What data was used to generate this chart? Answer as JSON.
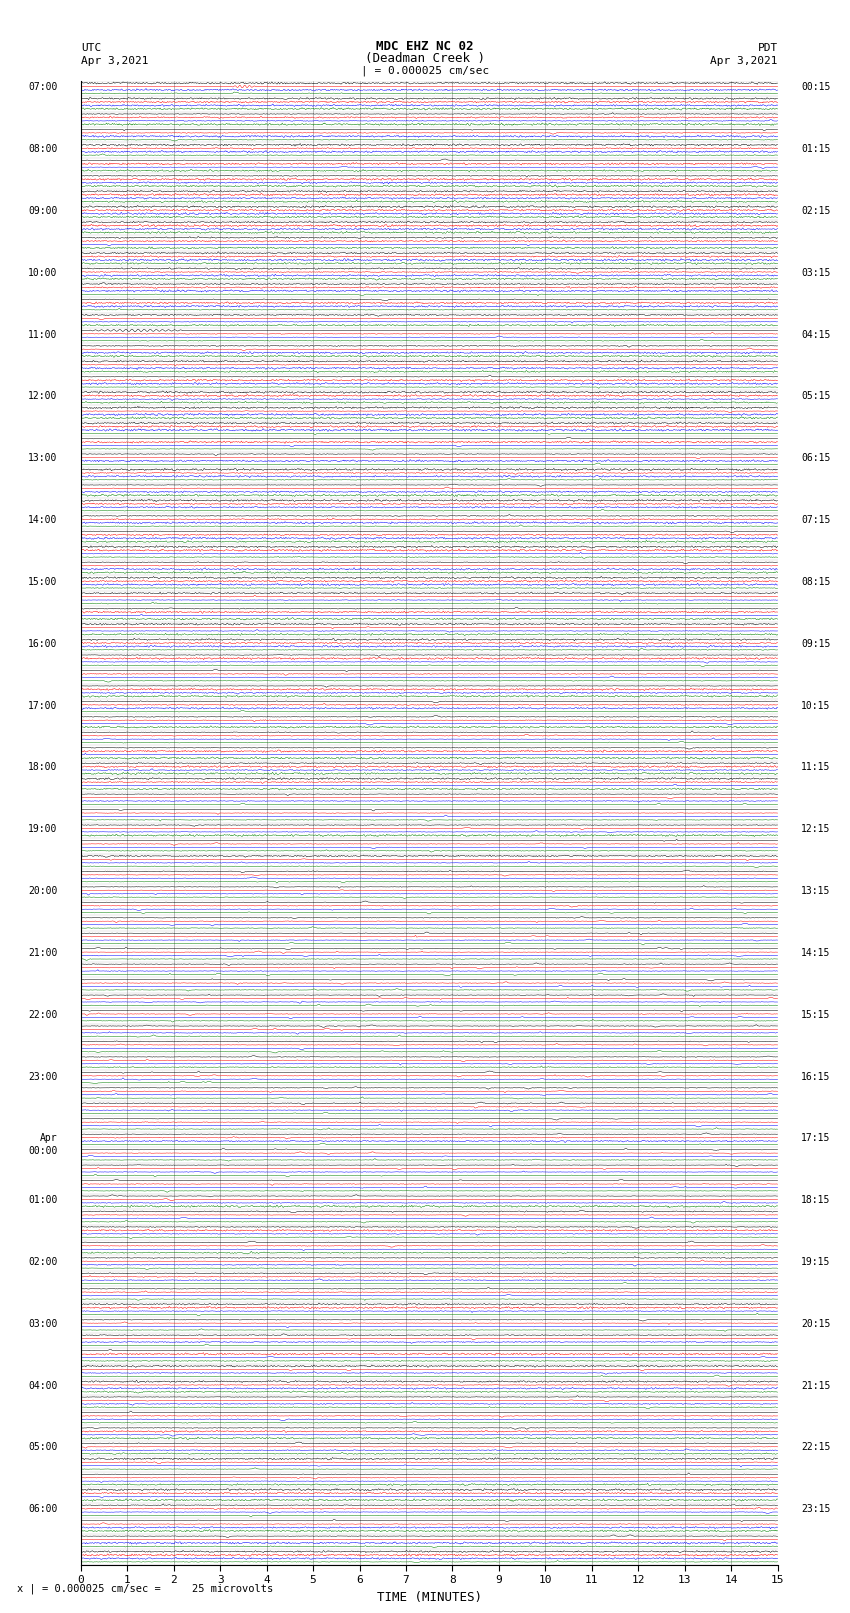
{
  "title_line1": "MDC EHZ NC 02",
  "title_line2": "(Deadman Creek )",
  "title_line3": "| = 0.000025 cm/sec",
  "left_label_top": "UTC",
  "left_label_date": "Apr 3,2021",
  "right_label_top": "PDT",
  "right_label_date": "Apr 3,2021",
  "xlabel": "TIME (MINUTES)",
  "footer": "x | = 0.000025 cm/sec =     25 microvolts",
  "xlim": [
    0,
    15
  ],
  "xticks": [
    0,
    1,
    2,
    3,
    4,
    5,
    6,
    7,
    8,
    9,
    10,
    11,
    12,
    13,
    14,
    15
  ],
  "background_color": "#ffffff",
  "trace_colors": [
    "black",
    "red",
    "blue",
    "green"
  ],
  "left_times": [
    "07:00",
    "",
    "",
    "",
    "08:00",
    "",
    "",
    "",
    "09:00",
    "",
    "",
    "",
    "10:00",
    "",
    "",
    "",
    "11:00",
    "",
    "",
    "",
    "12:00",
    "",
    "",
    "",
    "13:00",
    "",
    "",
    "",
    "14:00",
    "",
    "",
    "",
    "15:00",
    "",
    "",
    "",
    "16:00",
    "",
    "",
    "",
    "17:00",
    "",
    "",
    "",
    "18:00",
    "",
    "",
    "",
    "19:00",
    "",
    "",
    "",
    "20:00",
    "",
    "",
    "",
    "21:00",
    "",
    "",
    "",
    "22:00",
    "",
    "",
    "",
    "23:00",
    "",
    "",
    "",
    "Apr\n00:00",
    "",
    "",
    "",
    "01:00",
    "",
    "",
    "",
    "02:00",
    "",
    "",
    "",
    "03:00",
    "",
    "",
    "",
    "04:00",
    "",
    "",
    "",
    "05:00",
    "",
    "",
    "",
    "06:00",
    "",
    "",
    ""
  ],
  "right_times": [
    "00:15",
    "",
    "",
    "",
    "01:15",
    "",
    "",
    "",
    "02:15",
    "",
    "",
    "",
    "03:15",
    "",
    "",
    "",
    "04:15",
    "",
    "",
    "",
    "05:15",
    "",
    "",
    "",
    "06:15",
    "",
    "",
    "",
    "07:15",
    "",
    "",
    "",
    "08:15",
    "",
    "",
    "",
    "09:15",
    "",
    "",
    "",
    "10:15",
    "",
    "",
    "",
    "11:15",
    "",
    "",
    "",
    "12:15",
    "",
    "",
    "",
    "13:15",
    "",
    "",
    "",
    "14:15",
    "",
    "",
    "",
    "15:15",
    "",
    "",
    "",
    "16:15",
    "",
    "",
    "",
    "17:15",
    "",
    "",
    "",
    "18:15",
    "",
    "",
    "",
    "19:15",
    "",
    "",
    "",
    "20:15",
    "",
    "",
    "",
    "21:15",
    "",
    "",
    "",
    "22:15",
    "",
    "",
    "",
    "23:15",
    "",
    "",
    ""
  ],
  "n_rows": 96,
  "n_traces_per_row": 4,
  "figsize": [
    8.5,
    16.13
  ],
  "dpi": 100,
  "noise_levels": [
    0.008,
    0.008,
    0.008,
    0.008,
    0.008,
    0.008,
    0.008,
    0.008,
    0.008,
    0.008,
    0.008,
    0.008,
    0.008,
    0.008,
    0.008,
    0.008,
    0.008,
    0.008,
    0.008,
    0.008,
    0.008,
    0.008,
    0.008,
    0.008,
    0.008,
    0.008,
    0.008,
    0.008,
    0.008,
    0.008,
    0.008,
    0.008,
    0.01,
    0.01,
    0.01,
    0.01,
    0.012,
    0.012,
    0.012,
    0.012,
    0.015,
    0.015,
    0.015,
    0.015,
    0.015,
    0.015,
    0.015,
    0.015,
    0.025,
    0.03,
    0.03,
    0.035,
    0.04,
    0.045,
    0.05,
    0.055,
    0.06,
    0.065,
    0.07,
    0.075,
    0.08,
    0.08,
    0.075,
    0.07,
    0.065,
    0.06,
    0.06,
    0.055,
    0.05,
    0.05,
    0.045,
    0.04,
    0.03,
    0.025,
    0.02,
    0.018,
    0.015,
    0.015,
    0.015,
    0.015,
    0.015,
    0.015,
    0.015,
    0.015,
    0.018,
    0.02,
    0.025,
    0.03,
    0.015,
    0.012,
    0.012,
    0.012,
    0.012,
    0.01,
    0.01,
    0.01
  ]
}
